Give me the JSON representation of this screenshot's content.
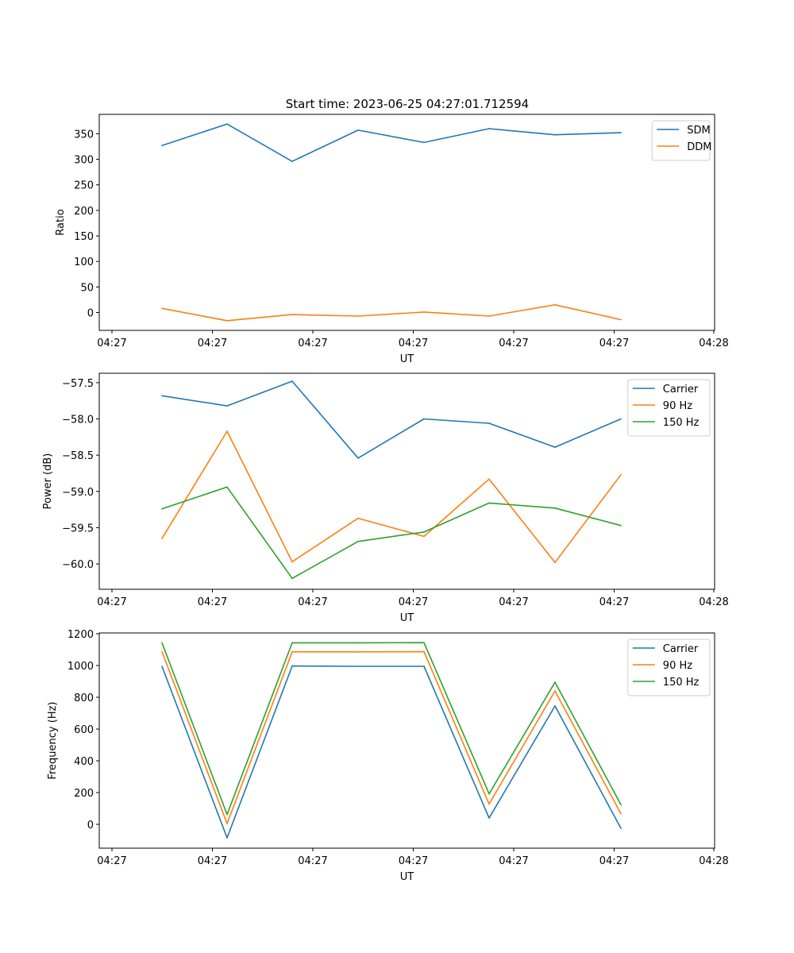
{
  "figure": {
    "title": "Start time: 2023-06-25 04:27:01.712594"
  },
  "chart_data": [
    {
      "type": "line",
      "xlabel": "UT",
      "ylabel": "Ratio",
      "x_tick_labels": [
        "04:27",
        "04:27",
        "04:27",
        "04:27",
        "04:27",
        "04:27",
        "04:28"
      ],
      "x_points": 8,
      "yticks": [
        0,
        50,
        100,
        150,
        200,
        250,
        300,
        350
      ],
      "ylim": [
        -35,
        388
      ],
      "grid": false,
      "legend_position": "top-right",
      "series": [
        {
          "name": "SDM",
          "color": "#1f77b4",
          "values": [
            327,
            369,
            296,
            357,
            333,
            360,
            348,
            352
          ]
        },
        {
          "name": "DDM",
          "color": "#ff7f0e",
          "values": [
            8,
            -16,
            -4,
            -7,
            1,
            -7,
            15,
            -14
          ]
        }
      ]
    },
    {
      "type": "line",
      "xlabel": "UT",
      "ylabel": "Power (dB)",
      "x_tick_labels": [
        "04:27",
        "04:27",
        "04:27",
        "04:27",
        "04:27",
        "04:27",
        "04:28"
      ],
      "x_points": 8,
      "yticks": [
        -60.0,
        -59.5,
        -59.0,
        -58.5,
        -58.0,
        -57.5
      ],
      "ytick_labels": [
        "−60.0",
        "−59.5",
        "−59.0",
        "−58.5",
        "−58.0",
        "−57.5"
      ],
      "ylim": [
        -60.35,
        -57.37
      ],
      "grid": false,
      "legend_position": "top-right",
      "series": [
        {
          "name": "Carrier",
          "color": "#1f77b4",
          "values": [
            -57.68,
            -57.82,
            -57.48,
            -58.54,
            -58.0,
            -58.06,
            -58.39,
            -58.0
          ]
        },
        {
          "name": "90 Hz",
          "color": "#ff7f0e",
          "values": [
            -59.65,
            -58.17,
            -59.97,
            -59.37,
            -59.62,
            -58.83,
            -59.98,
            -58.77
          ]
        },
        {
          "name": "150 Hz",
          "color": "#2ca02c",
          "values": [
            -59.24,
            -58.94,
            -60.2,
            -59.69,
            -59.56,
            -59.16,
            -59.23,
            -59.47
          ]
        }
      ]
    },
    {
      "type": "line",
      "xlabel": "UT",
      "ylabel": "Frequency (Hz)",
      "x_tick_labels": [
        "04:27",
        "04:27",
        "04:27",
        "04:27",
        "04:27",
        "04:27",
        "04:28"
      ],
      "x_points": 8,
      "yticks": [
        0,
        200,
        400,
        600,
        800,
        1000,
        1200
      ],
      "ylim": [
        -150,
        1205
      ],
      "grid": false,
      "legend_position": "top-right",
      "series": [
        {
          "name": "Carrier",
          "color": "#1f77b4",
          "values": [
            995,
            -85,
            997,
            995,
            995,
            40,
            745,
            -25
          ]
        },
        {
          "name": "90 Hz",
          "color": "#ff7f0e",
          "values": [
            1088,
            5,
            1086,
            1086,
            1087,
            128,
            840,
            67
          ]
        },
        {
          "name": "150 Hz",
          "color": "#2ca02c",
          "values": [
            1143,
            62,
            1143,
            1143,
            1144,
            192,
            895,
            124
          ]
        }
      ]
    }
  ]
}
